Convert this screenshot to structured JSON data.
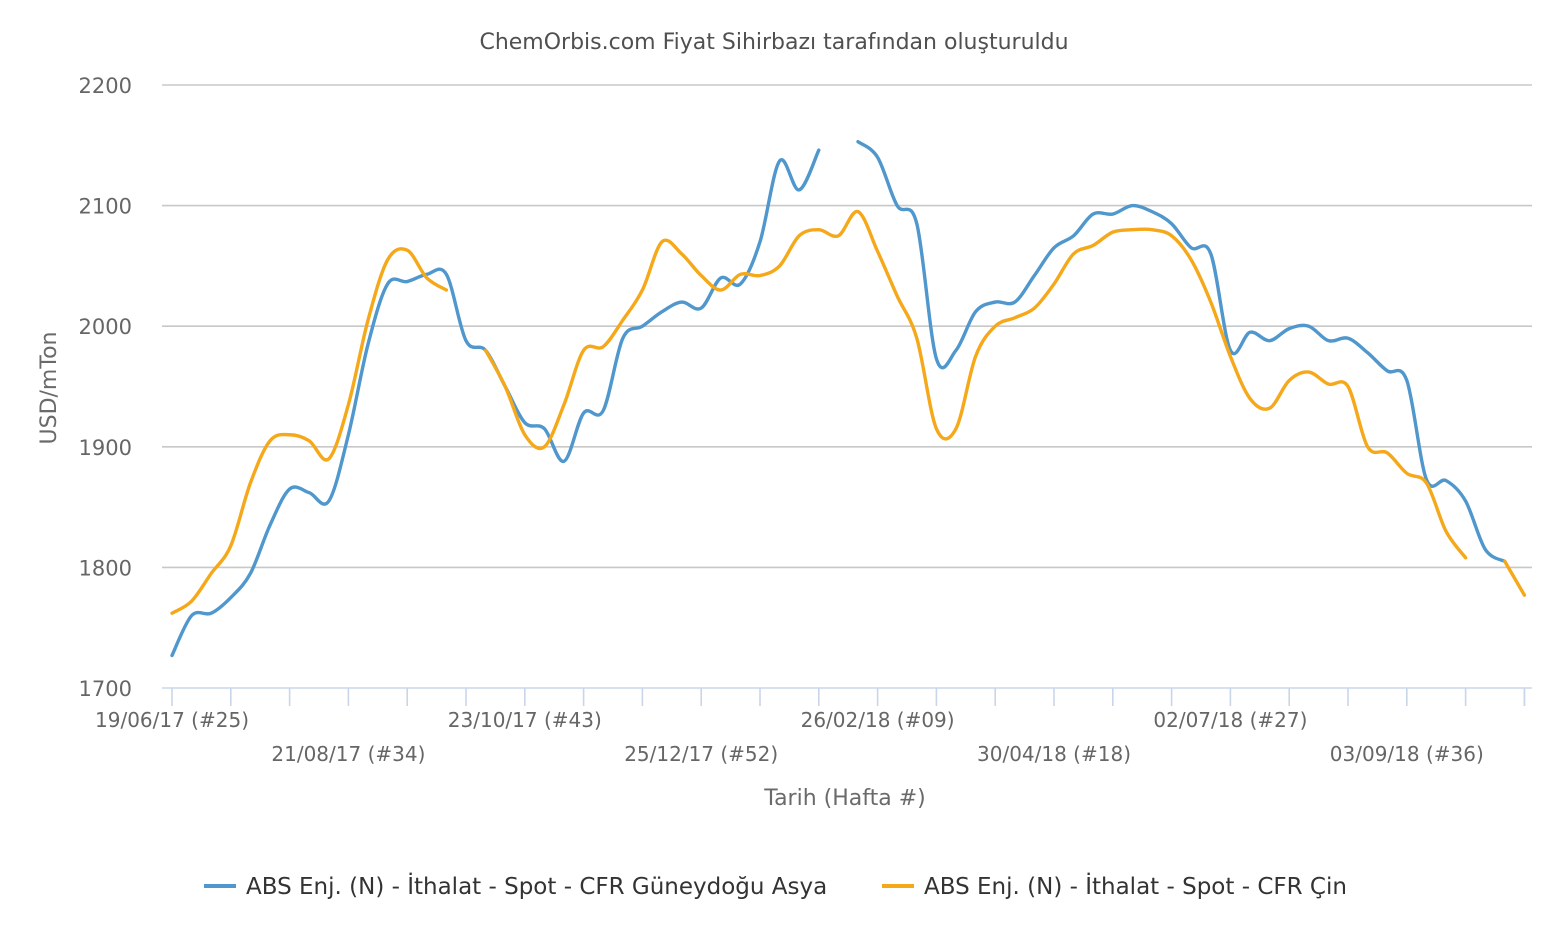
{
  "colors": {
    "series_1": "#4f97cc",
    "series_2": "#f5a819"
  },
  "chart_data": {
    "type": "line",
    "title": "ChemOrbis.com Fiyat Sihirbazı tarafından oluşturuldu",
    "xlabel": "Tarih (Hafta #)",
    "ylabel": "USD/mTon",
    "ylim": [
      1700,
      2200
    ],
    "yticks": [
      1700,
      1800,
      1900,
      2000,
      2100,
      2200
    ],
    "grid": true,
    "legend_position": "bottom",
    "x_tick_labels": [
      {
        "week_index": 0,
        "label": "19/06/17 (#25)",
        "row": 1
      },
      {
        "week_index": 9,
        "label": "21/08/17 (#34)",
        "row": 2
      },
      {
        "week_index": 18,
        "label": "23/10/17 (#43)",
        "row": 1
      },
      {
        "week_index": 27,
        "label": "25/12/17 (#52)",
        "row": 2
      },
      {
        "week_index": 36,
        "label": "26/02/18 (#09)",
        "row": 1
      },
      {
        "week_index": 45,
        "label": "30/04/18 (#18)",
        "row": 2
      },
      {
        "week_index": 54,
        "label": "02/07/18 (#27)",
        "row": 1
      },
      {
        "week_index": 63,
        "label": "03/09/18 (#36)",
        "row": 2
      }
    ],
    "x_weeks": [
      0,
      1,
      2,
      3,
      4,
      5,
      6,
      7,
      8,
      9,
      10,
      11,
      12,
      13,
      14,
      15,
      16,
      17,
      18,
      19,
      20,
      21,
      22,
      23,
      24,
      25,
      26,
      27,
      28,
      29,
      30,
      31,
      32,
      33,
      34,
      35,
      36,
      37,
      38,
      39,
      40,
      41,
      42,
      43,
      44,
      45,
      46,
      47,
      48,
      49,
      50,
      51,
      52,
      53,
      54,
      55,
      56,
      57,
      58,
      59,
      60,
      61,
      62,
      63,
      64,
      65,
      66,
      67,
      68,
      69
    ],
    "series": [
      {
        "name": "ABS Enj. (N) - İthalat - Spot - CFR Güneydoğu Asya",
        "color": "#4f97cc",
        "values": [
          1727,
          1760,
          1762,
          1775,
          1795,
          1835,
          1865,
          1862,
          1855,
          1910,
          1985,
          2035,
          2037,
          2043,
          2043,
          1988,
          1980,
          1950,
          1920,
          1915,
          1888,
          1928,
          1930,
          1990,
          2000,
          2012,
          2020,
          2015,
          2040,
          2035,
          2070,
          2137,
          2113,
          2146,
          null,
          2153,
          2140,
          2100,
          2085,
          1973,
          1980,
          2012,
          2020,
          2020,
          2042,
          2065,
          2075,
          2093,
          2093,
          2100,
          2095,
          2085,
          2065,
          2060,
          1980,
          1995,
          1988,
          1998,
          2000,
          1988,
          1990,
          1978,
          1963,
          1955,
          1873,
          1872,
          1855,
          1815,
          1805,
          null
        ],
        "segments": [
          [
            0,
            33
          ],
          [
            35,
            68
          ]
        ]
      },
      {
        "name": "ABS Enj. (N) - İthalat - Spot - CFR Çin",
        "color": "#f5a819",
        "values": [
          1762,
          1772,
          1795,
          1818,
          1870,
          1905,
          1910,
          1905,
          1890,
          1935,
          2005,
          2055,
          2063,
          2040,
          2030,
          null,
          1980,
          1950,
          1910,
          1900,
          1935,
          1980,
          1983,
          2005,
          2030,
          2070,
          2060,
          2042,
          2030,
          2043,
          2042,
          2050,
          2075,
          2080,
          2075,
          2095,
          2062,
          2025,
          1990,
          1915,
          1915,
          1975,
          2000,
          2007,
          2015,
          2035,
          2060,
          2067,
          2078,
          2080,
          2080,
          2075,
          2055,
          2020,
          1975,
          1940,
          1932,
          1955,
          1962,
          1952,
          1950,
          1900,
          1895,
          1878,
          1870,
          1830,
          1808,
          null,
          1805,
          1777
        ],
        "segments": [
          [
            0,
            14
          ],
          [
            16,
            66
          ],
          [
            68,
            69
          ]
        ]
      }
    ]
  }
}
